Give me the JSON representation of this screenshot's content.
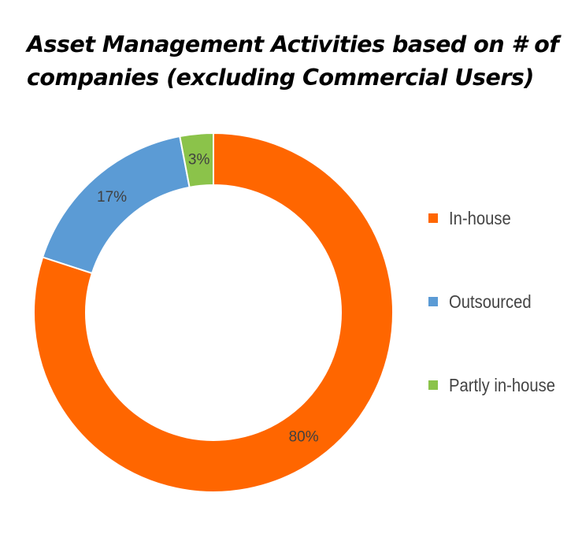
{
  "chart_data": {
    "type": "pie",
    "variant": "donut",
    "title_lines": [
      "Asset Management Activities based on # of",
      "companies (excluding Commercial Users)"
    ],
    "slices": [
      {
        "name": "In-house",
        "value": 80,
        "label": "80%",
        "color": "#FF6600"
      },
      {
        "name": "Outsourced",
        "value": 17,
        "label": "17%",
        "color": "#5B9BD5"
      },
      {
        "name": "Partly in-house",
        "value": 3,
        "label": "3%",
        "color": "#8BC34A"
      }
    ],
    "legend_position": "right",
    "start_angle": "12 o'clock",
    "direction": "clockwise"
  }
}
